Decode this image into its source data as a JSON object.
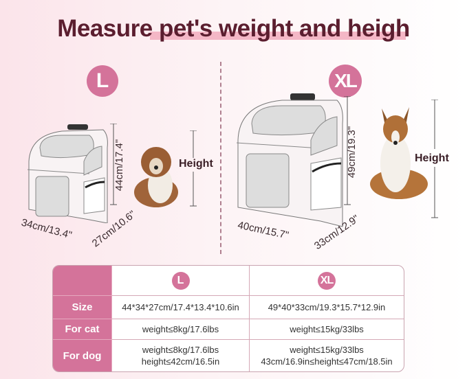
{
  "title": "Measure pet's weight and heigh",
  "sizes": {
    "l": {
      "badge": "L",
      "height": "44cm/17.4\"",
      "width": "34cm/13.4\"",
      "depth": "27cm/10.6\"",
      "pet_label": "Height"
    },
    "xl": {
      "badge": "XL",
      "height": "49cm/19.3\"",
      "width": "40cm/15.7\"",
      "depth": "33cm/12.9\"",
      "pet_label": "Height"
    }
  },
  "table": {
    "columns": [
      "L",
      "XL"
    ],
    "rows": [
      {
        "label": "Size",
        "l": [
          "44*34*27cm/17.4*13.4*10.6in"
        ],
        "xl": [
          "49*40*33cm/19.3*15.7*12.9in"
        ]
      },
      {
        "label": "For cat",
        "l": [
          "weight≤8kg/17.6lbs"
        ],
        "xl": [
          "weight≤15kg/33lbs"
        ]
      },
      {
        "label": "For dog",
        "l": [
          "weight≤8kg/17.6lbs",
          "height≤42cm/16.5in"
        ],
        "xl": [
          "weight≤15kg/33lbs",
          "43cm/16.9in≤height≤47cm/18.5in"
        ]
      }
    ]
  },
  "colors": {
    "accent": "#d4739a",
    "title": "#5b1e2f"
  }
}
